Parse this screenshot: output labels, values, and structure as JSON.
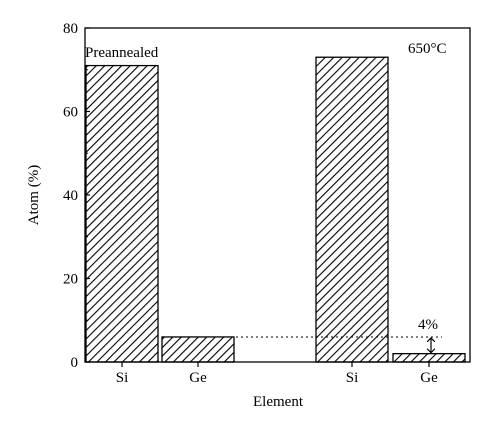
{
  "chart_data": {
    "type": "bar",
    "xlabel": "Element",
    "ylabel": "Atom (%)",
    "ylim": [
      0,
      80
    ],
    "yticks": [
      0,
      20,
      40,
      60,
      80
    ],
    "grid": false,
    "panels": [
      {
        "label": "Preannealed",
        "bars": [
          {
            "category": "Si",
            "value": 71
          },
          {
            "category": "Ge",
            "value": 6
          }
        ]
      },
      {
        "label": "650°C",
        "bars": [
          {
            "category": "Si",
            "value": 73
          },
          {
            "category": "Ge",
            "value": 2
          }
        ]
      }
    ],
    "annotation": {
      "text": "4%",
      "from": 6,
      "to": 2
    }
  }
}
